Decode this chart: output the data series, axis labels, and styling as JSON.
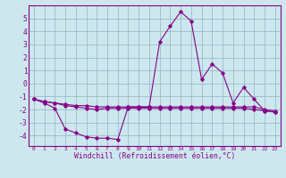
{
  "title": "",
  "xlabel": "Windchill (Refroidissement éolien,°C)",
  "ylabel": "",
  "background_color": "#cce8ee",
  "line_color": "#880088",
  "grid_color": "#99bbcc",
  "xlim": [
    -0.5,
    23.5
  ],
  "ylim": [
    -4.8,
    6.0
  ],
  "xticks": [
    0,
    1,
    2,
    3,
    4,
    5,
    6,
    7,
    8,
    9,
    10,
    11,
    12,
    13,
    14,
    15,
    16,
    17,
    18,
    19,
    20,
    21,
    22,
    23
  ],
  "yticks": [
    -4,
    -3,
    -2,
    -1,
    0,
    1,
    2,
    3,
    4,
    5
  ],
  "series": [
    [
      -1.2,
      -1.4,
      -1.5,
      -1.6,
      -1.7,
      -1.7,
      -1.8,
      -1.8,
      -1.8,
      -1.8,
      -1.8,
      -1.8,
      -1.8,
      -1.8,
      -1.8,
      -1.8,
      -1.8,
      -1.8,
      -1.8,
      -1.8,
      -1.8,
      -1.8,
      -2.0,
      -2.1
    ],
    [
      -1.2,
      -1.4,
      -1.5,
      -1.7,
      -1.8,
      -1.9,
      -2.0,
      -1.9,
      -1.9,
      -1.9,
      -1.9,
      -1.9,
      -1.9,
      -1.9,
      -1.9,
      -1.9,
      -1.9,
      -1.9,
      -1.9,
      -1.9,
      -1.9,
      -2.0,
      -2.1,
      -2.2
    ],
    [
      -1.2,
      -1.5,
      -1.9,
      -3.5,
      -3.8,
      -4.1,
      -4.2,
      -4.2,
      -4.3,
      -1.8,
      -1.8,
      -1.8,
      3.2,
      4.4,
      5.5,
      4.8,
      0.3,
      1.5,
      0.8,
      -1.5,
      -0.3,
      -1.2,
      -2.1,
      -2.2
    ]
  ],
  "xlabel_fontsize": 5.8,
  "tick_fontsize_x": 4.5,
  "tick_fontsize_y": 5.8
}
